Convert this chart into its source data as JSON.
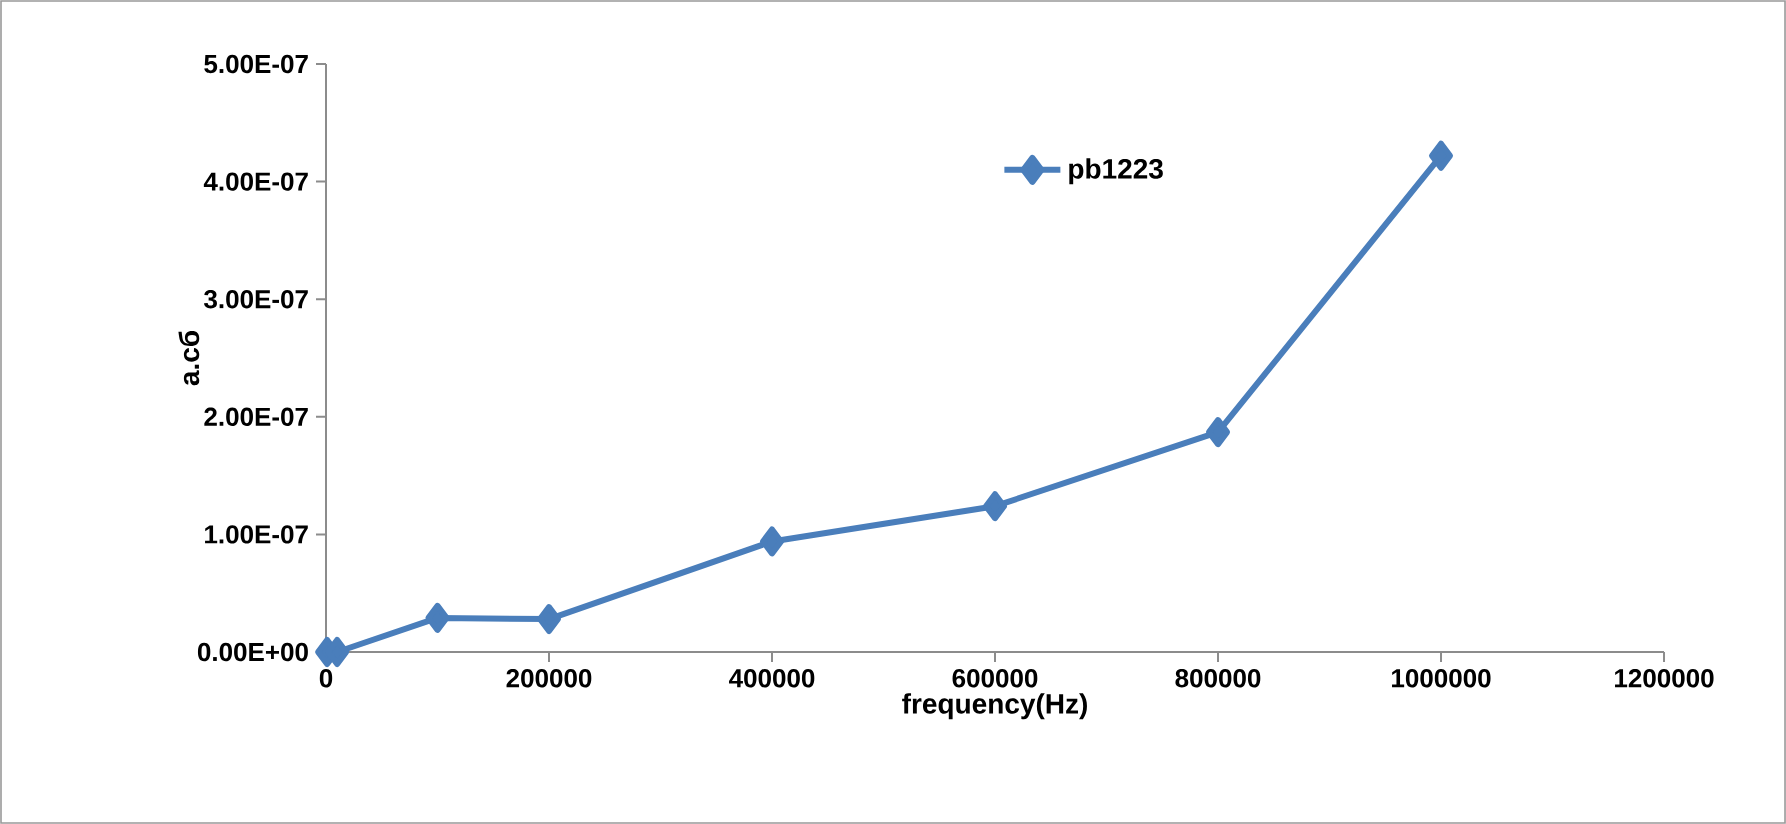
{
  "chart_data": {
    "type": "line",
    "xlabel": "frequency(Hz)",
    "ylabel": "a.cб",
    "x": [
      1000,
      10000,
      100000,
      200000,
      400000,
      600000,
      800000,
      1000000
    ],
    "series": [
      {
        "name": "pb1223",
        "color": "#4a7ebb",
        "values": [
          0,
          0,
          2.9e-08,
          2.8e-08,
          9.4e-08,
          1.24e-07,
          1.87e-07,
          4.22e-07
        ]
      }
    ],
    "xlim": [
      0,
      1200000
    ],
    "xticks": [
      0,
      200000,
      400000,
      600000,
      800000,
      1000000,
      1200000
    ],
    "ylim": [
      0,
      5e-07
    ],
    "yticks": [
      {
        "value": 0,
        "label": "0.00E+00"
      },
      {
        "value": 1e-07,
        "label": "1.00E-07"
      },
      {
        "value": 2e-07,
        "label": "2.00E-07"
      },
      {
        "value": 3e-07,
        "label": "3.00E-07"
      },
      {
        "value": 4e-07,
        "label": "4.00E-07"
      },
      {
        "value": 5e-07,
        "label": "5.00E-07"
      }
    ],
    "grid": false,
    "legend": "top",
    "marker": "diamond",
    "line_style": "solid"
  }
}
